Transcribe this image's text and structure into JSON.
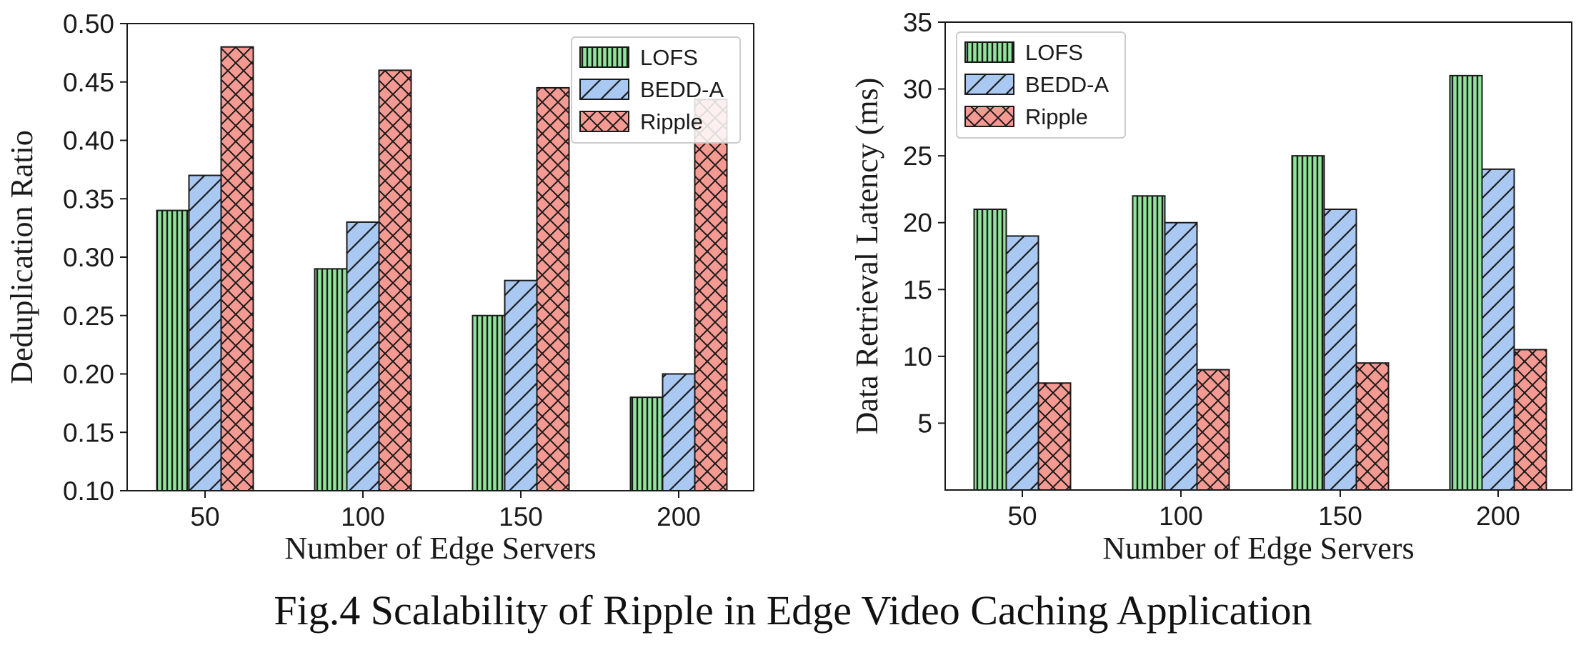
{
  "caption": "Fig.4 Scalability of Ripple in Edge Video Caching Application",
  "colors": {
    "LOFS": "#8fe39a",
    "BEDD-A": "#a9c8f2",
    "Ripple": "#f59a92",
    "edge": "#1a1a1a"
  },
  "chart_data": [
    {
      "type": "bar",
      "title": "",
      "xlabel": "Number of Edge Servers",
      "ylabel": "Deduplication Ratio",
      "categories": [
        "50",
        "100",
        "150",
        "200"
      ],
      "ylim": [
        0.1,
        0.5
      ],
      "yticks": [
        "0.10",
        "0.15",
        "0.20",
        "0.25",
        "0.30",
        "0.35",
        "0.40",
        "0.45",
        "0.50"
      ],
      "legend": "top-right",
      "grid": false,
      "series": [
        {
          "name": "LOFS",
          "hatch": "vertical",
          "values": [
            0.34,
            0.29,
            0.25,
            0.18
          ]
        },
        {
          "name": "BEDD-A",
          "hatch": "diagonal",
          "values": [
            0.37,
            0.33,
            0.28,
            0.2
          ]
        },
        {
          "name": "Ripple",
          "hatch": "crosshatch",
          "values": [
            0.48,
            0.46,
            0.445,
            0.435
          ]
        }
      ]
    },
    {
      "type": "bar",
      "title": "",
      "xlabel": "Number of Edge Servers",
      "ylabel": "Data Retrieval Latency (ms)",
      "categories": [
        "50",
        "100",
        "150",
        "200"
      ],
      "ylim": [
        0,
        35
      ],
      "yticks": [
        "5",
        "10",
        "15",
        "20",
        "25",
        "30",
        "35"
      ],
      "legend": "top-left",
      "grid": false,
      "series": [
        {
          "name": "LOFS",
          "hatch": "vertical",
          "values": [
            21,
            22,
            25,
            31
          ]
        },
        {
          "name": "BEDD-A",
          "hatch": "diagonal",
          "values": [
            19,
            20,
            21,
            24
          ]
        },
        {
          "name": "Ripple",
          "hatch": "crosshatch",
          "values": [
            8,
            9,
            9.5,
            10.5
          ]
        }
      ]
    }
  ]
}
